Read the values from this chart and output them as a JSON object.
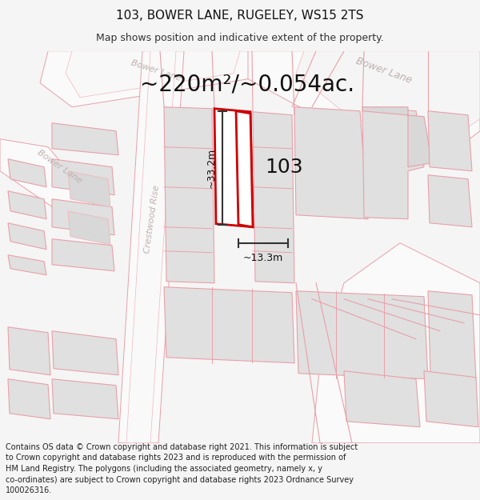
{
  "title": "103, BOWER LANE, RUGELEY, WS15 2TS",
  "subtitle": "Map shows position and indicative extent of the property.",
  "area_text": "~220m²/~0.054ac.",
  "label_103": "103",
  "dim_vertical": "~33.2m",
  "dim_horizontal": "~13.3m",
  "footer": "Contains OS data © Crown copyright and database right 2021. This information is subject\nto Crown copyright and database rights 2023 and is reproduced with the permission of\nHM Land Registry. The polygons (including the associated geometry, namely x, y\nco-ordinates) are subject to Crown copyright and database rights 2023 Ordnance Survey\n100026316.",
  "bg_color": "#f5f5f5",
  "map_bg": "#ffffff",
  "road_line_color": "#e8a0a8",
  "road_line_color2": "#f0b8be",
  "building_fill": "#e0e0e0",
  "building_fill2": "#d8d8d8",
  "building_outline": "#cccccc",
  "highlight_outline": "#cc0000",
  "dim_line_color": "#333333",
  "road_label_color": "#c0b0b0",
  "title_fontsize": 11,
  "subtitle_fontsize": 9,
  "area_fontsize": 20,
  "label_fontsize": 18,
  "dim_fontsize": 9,
  "footer_fontsize": 7
}
